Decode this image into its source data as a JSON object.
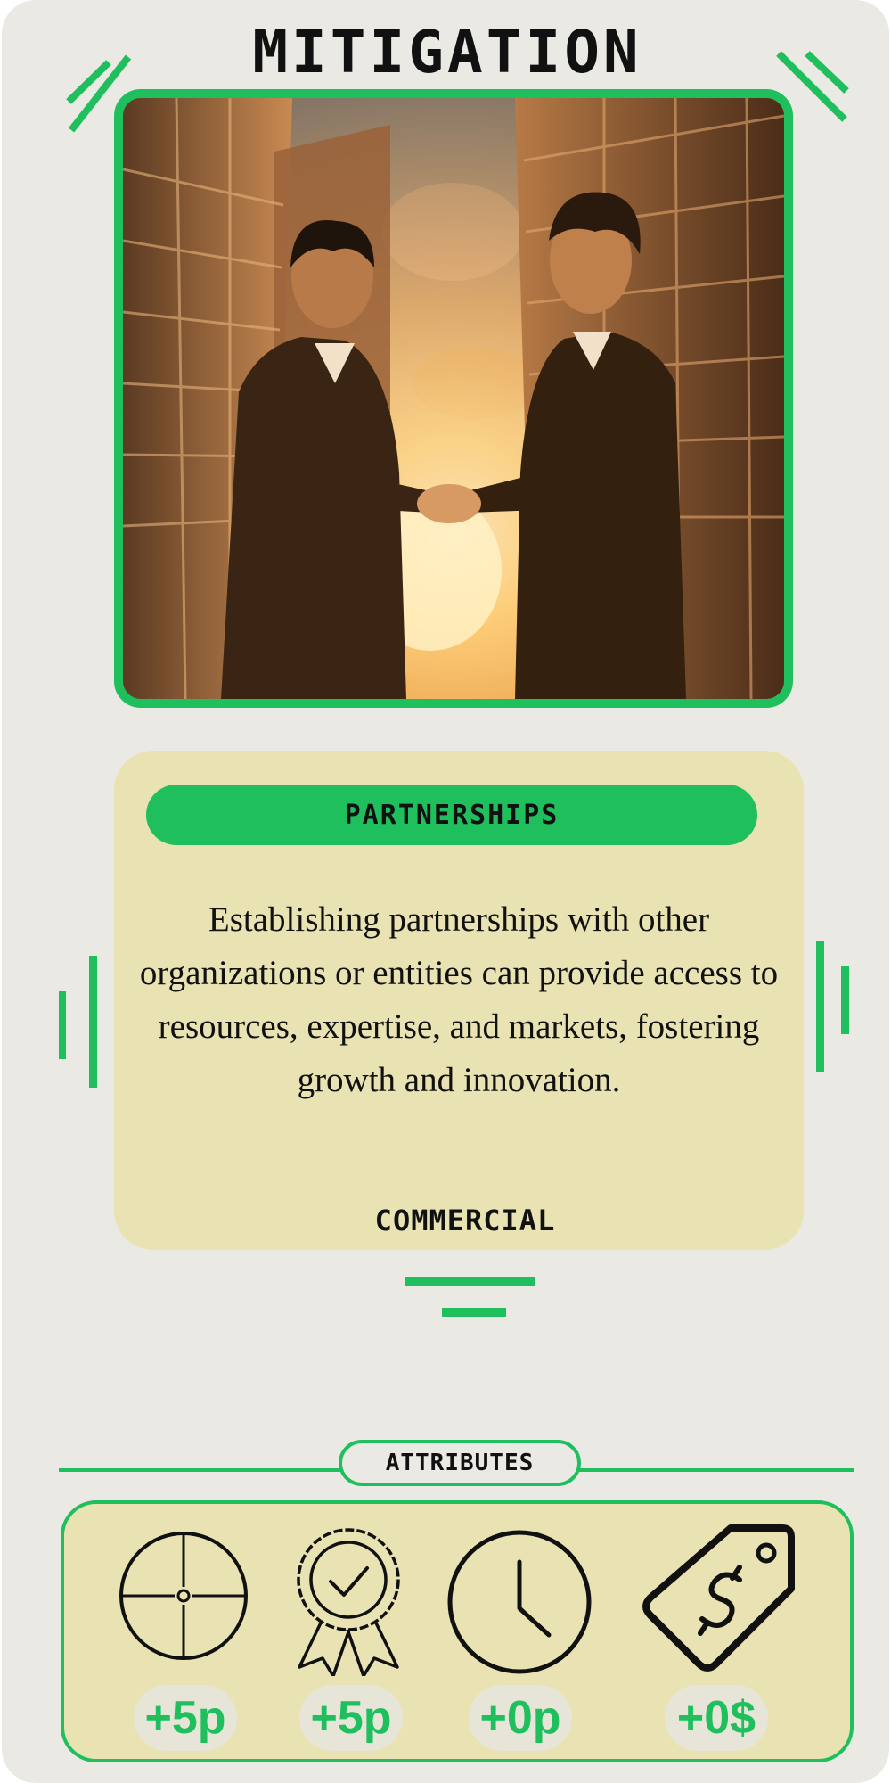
{
  "card": {
    "title": "MITIGATION",
    "category": "PARTNERSHIPS",
    "description": "Establishing partnerships with other organizations or entities can provide access to resources, expertise, and markets, fostering growth and innovation.",
    "type": "COMMERCIAL"
  },
  "attributes": {
    "heading": "ATTRIBUTES",
    "items": [
      {
        "icon": "crosshair-icon",
        "value": "+5p"
      },
      {
        "icon": "award-ribbon-icon",
        "value": "+5p"
      },
      {
        "icon": "clock-icon",
        "value": "+0p"
      },
      {
        "icon": "price-tag-icon",
        "value": "+0$"
      }
    ]
  },
  "colors": {
    "accent": "#1fbf5e",
    "card_background": "#ebe9e3",
    "panel_background": "#e9e3b4",
    "text": "#111111"
  }
}
